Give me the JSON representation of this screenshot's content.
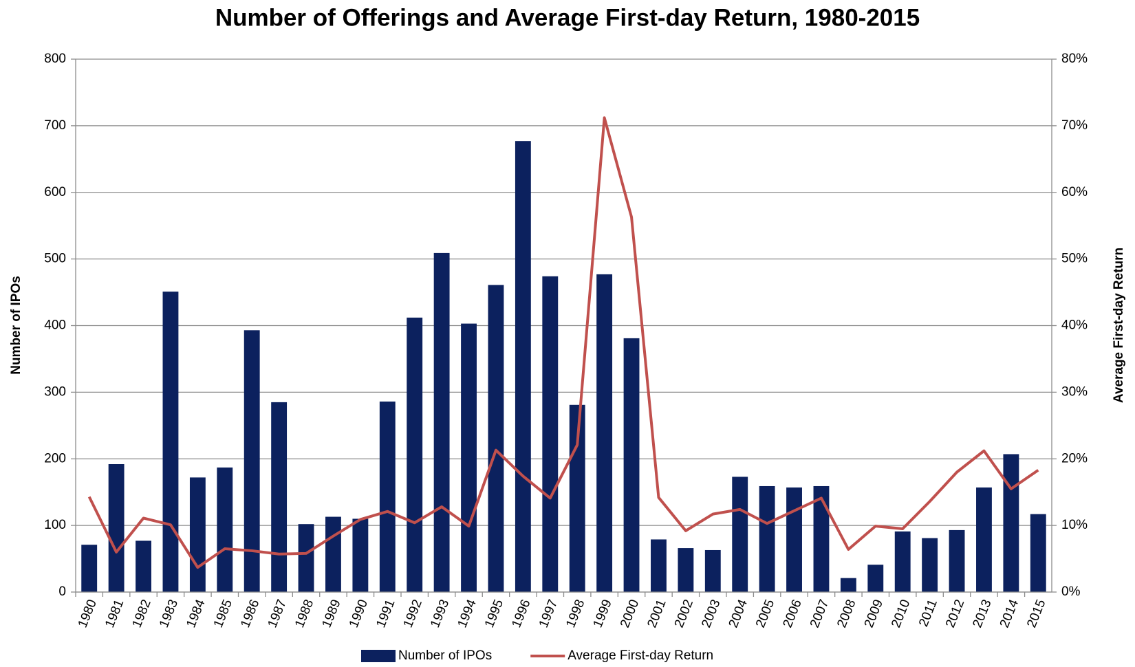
{
  "chart_data": {
    "type": "bar_line",
    "title": "Number of Offerings and Average First-day Return, 1980-2015",
    "y_label": "Number of IPOs",
    "y2_label": "Average First-day Return",
    "categories": [
      "1980",
      "1981",
      "1982",
      "1983",
      "1984",
      "1985",
      "1986",
      "1987",
      "1988",
      "1989",
      "1990",
      "1991",
      "1992",
      "1993",
      "1994",
      "1995",
      "1996",
      "1997",
      "1998",
      "1999",
      "2000",
      "2001",
      "2002",
      "2003",
      "2004",
      "2005",
      "2006",
      "2007",
      "2008",
      "2009",
      "2010",
      "2011",
      "2012",
      "2013",
      "2014",
      "2015"
    ],
    "series": [
      {
        "name": "Number of IPOs",
        "type": "bar",
        "color": "#0c215e",
        "axis": "y",
        "values": [
          71,
          192,
          77,
          451,
          172,
          187,
          393,
          285,
          102,
          113,
          110,
          286,
          412,
          509,
          403,
          461,
          677,
          474,
          281,
          477,
          381,
          79,
          66,
          63,
          173,
          159,
          157,
          159,
          21,
          41,
          91,
          81,
          93,
          157,
          207,
          117
        ]
      },
      {
        "name": "Average First-day Return",
        "type": "line",
        "color": "#c0504d",
        "axis": "y2",
        "values": [
          14.3,
          6.0,
          11.1,
          10.1,
          3.7,
          6.5,
          6.2,
          5.7,
          5.8,
          8.4,
          10.9,
          12.1,
          10.4,
          12.8,
          9.9,
          21.3,
          17.4,
          14.1,
          22.1,
          71.2,
          56.3,
          14.2,
          9.2,
          11.7,
          12.4,
          10.3,
          12.2,
          14.1,
          6.4,
          9.9,
          9.5,
          13.6,
          18.0,
          21.2,
          15.5,
          18.3
        ]
      }
    ],
    "ylim": [
      0,
      800
    ],
    "yticks": [
      0,
      100,
      200,
      300,
      400,
      500,
      600,
      700,
      800
    ],
    "y2lim": [
      0,
      80
    ],
    "y2ticks": [
      {
        "value": 0,
        "label": "0%"
      },
      {
        "value": 10,
        "label": "10%"
      },
      {
        "value": 20,
        "label": "20%"
      },
      {
        "value": 30,
        "label": "30%"
      },
      {
        "value": 40,
        "label": "40%"
      },
      {
        "value": 50,
        "label": "50%"
      },
      {
        "value": 60,
        "label": "60%"
      },
      {
        "value": 70,
        "label": "70%"
      },
      {
        "value": 80,
        "label": "80%"
      }
    ],
    "grid": true,
    "legend": "bottom"
  }
}
